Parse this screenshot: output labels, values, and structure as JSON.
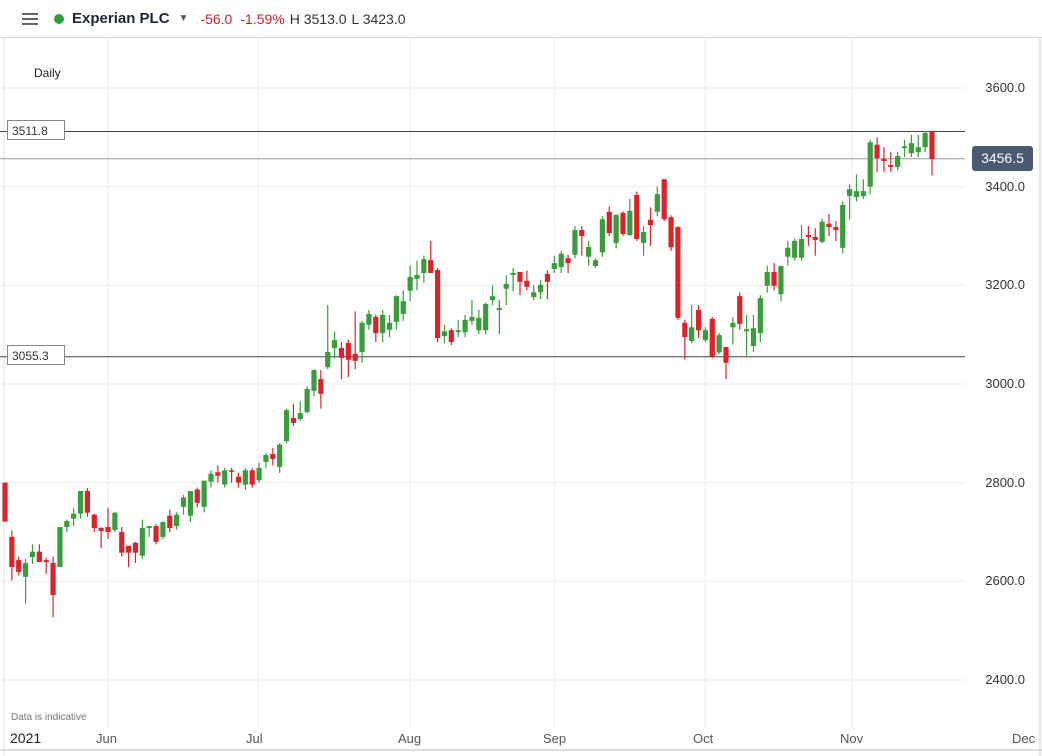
{
  "header": {
    "instrument": "Experian PLC",
    "change": "-56.0",
    "change_pct": "-1.59%",
    "high": "H 3513.0",
    "low": "L 3423.0",
    "status_color": "#2ea043"
  },
  "period": "Daily",
  "levels": {
    "upper": "3511.8",
    "lower": "3055.3",
    "current": "3456.5"
  },
  "footer": {
    "note": "Data is indicative",
    "year": "2021"
  },
  "chart_data": {
    "type": "candlestick",
    "up_color": "#3a9c3c",
    "down_color": "#d9242b",
    "ylim": [
      2350,
      3700
    ],
    "y_ticks": [
      "3600.0",
      "3400.0",
      "3200.0",
      "3000.0",
      "2800.0",
      "2600.0",
      "2400.0"
    ],
    "x_ticks": [
      "Jun",
      "Jul",
      "Aug",
      "Sep",
      "Oct",
      "Nov",
      "Dec"
    ],
    "grid": true,
    "horizontal_lines": [
      3511.8,
      3456.5,
      3055.3
    ],
    "ohlc_fields": [
      "open",
      "high",
      "low",
      "close"
    ],
    "candles": [
      [
        2800,
        2800,
        2721,
        2721
      ],
      [
        2690,
        2703,
        2602,
        2629
      ],
      [
        2643,
        2650,
        2612,
        2619
      ],
      [
        2609,
        2645,
        2555,
        2637
      ],
      [
        2649,
        2675,
        2635,
        2660
      ],
      [
        2660,
        2675,
        2639,
        2639
      ],
      [
        2643,
        2647,
        2615,
        2639
      ],
      [
        2637,
        2650,
        2527,
        2572
      ],
      [
        2629,
        2710,
        2629,
        2710
      ],
      [
        2710,
        2725,
        2700,
        2722
      ],
      [
        2727,
        2748,
        2712,
        2737
      ],
      [
        2737,
        2783,
        2727,
        2783
      ],
      [
        2783,
        2789,
        2731,
        2739
      ],
      [
        2735,
        2737,
        2700,
        2708
      ],
      [
        2708,
        2710,
        2667,
        2702
      ],
      [
        2710,
        2749,
        2686,
        2700
      ],
      [
        2704,
        2741,
        2700,
        2739
      ],
      [
        2700,
        2710,
        2650,
        2658
      ],
      [
        2672,
        2672,
        2629,
        2658
      ],
      [
        2678,
        2680,
        2637,
        2658
      ],
      [
        2652,
        2725,
        2645,
        2708
      ],
      [
        2708,
        2712,
        2690,
        2712
      ],
      [
        2712,
        2716,
        2675,
        2680
      ],
      [
        2690,
        2722,
        2685,
        2720
      ],
      [
        2733,
        2745,
        2700,
        2708
      ],
      [
        2712,
        2740,
        2705,
        2735
      ],
      [
        2751,
        2775,
        2735,
        2770
      ],
      [
        2733,
        2783,
        2720,
        2783
      ],
      [
        2786,
        2790,
        2750,
        2759
      ],
      [
        2751,
        2804,
        2740,
        2804
      ],
      [
        2802,
        2825,
        2790,
        2818
      ],
      [
        2821,
        2835,
        2800,
        2814
      ],
      [
        2796,
        2830,
        2790,
        2825
      ],
      [
        2825,
        2830,
        2800,
        2822
      ],
      [
        2812,
        2820,
        2790,
        2800
      ],
      [
        2796,
        2830,
        2785,
        2825
      ],
      [
        2825,
        2830,
        2790,
        2796
      ],
      [
        2805,
        2840,
        2800,
        2830
      ],
      [
        2842,
        2860,
        2830,
        2856
      ],
      [
        2858,
        2870,
        2835,
        2848
      ],
      [
        2832,
        2880,
        2820,
        2877
      ],
      [
        2884,
        2950,
        2880,
        2947
      ],
      [
        2931,
        2960,
        2915,
        2921
      ],
      [
        2929,
        2965,
        2925,
        2941
      ],
      [
        2943,
        2995,
        2940,
        2990
      ],
      [
        2986,
        3030,
        2975,
        3028
      ],
      [
        3010,
        3028,
        2950,
        2980
      ],
      [
        3034,
        3160,
        3030,
        3065
      ],
      [
        3073,
        3106,
        3052,
        3089
      ],
      [
        3073,
        3085,
        3010,
        3053
      ],
      [
        3083,
        3090,
        3014,
        3049
      ],
      [
        3061,
        3147,
        3030,
        3047
      ],
      [
        3065,
        3128,
        3043,
        3124
      ],
      [
        3120,
        3150,
        3110,
        3142
      ],
      [
        3136,
        3140,
        3085,
        3103
      ],
      [
        3103,
        3150,
        3085,
        3140
      ],
      [
        3110,
        3140,
        3095,
        3124
      ],
      [
        3126,
        3180,
        3110,
        3178
      ],
      [
        3142,
        3190,
        3128,
        3168
      ],
      [
        3189,
        3240,
        3168,
        3217
      ],
      [
        3213,
        3250,
        3190,
        3221
      ],
      [
        3225,
        3260,
        3205,
        3253
      ],
      [
        3251,
        3290,
        3225,
        3225
      ],
      [
        3231,
        3235,
        3085,
        3093
      ],
      [
        3097,
        3120,
        3083,
        3107
      ],
      [
        3109,
        3113,
        3079,
        3085
      ],
      [
        3105,
        3130,
        3095,
        3109
      ],
      [
        3105,
        3140,
        3095,
        3130
      ],
      [
        3128,
        3170,
        3120,
        3136
      ],
      [
        3109,
        3150,
        3101,
        3134
      ],
      [
        3109,
        3165,
        3101,
        3162
      ],
      [
        3170,
        3200,
        3160,
        3178
      ],
      [
        3150,
        3170,
        3101,
        3154
      ],
      [
        3193,
        3220,
        3160,
        3203
      ],
      [
        3221,
        3235,
        3188,
        3225
      ],
      [
        3227,
        3227,
        3180,
        3207
      ],
      [
        3209,
        3230,
        3190,
        3197
      ],
      [
        3176,
        3200,
        3170,
        3186
      ],
      [
        3186,
        3210,
        3172,
        3201
      ],
      [
        3223,
        3230,
        3172,
        3207
      ],
      [
        3233,
        3260,
        3225,
        3245
      ],
      [
        3237,
        3270,
        3225,
        3264
      ],
      [
        3255,
        3262,
        3225,
        3245
      ],
      [
        3262,
        3320,
        3255,
        3312
      ],
      [
        3312,
        3320,
        3260,
        3300
      ],
      [
        3258,
        3290,
        3240,
        3278
      ],
      [
        3239,
        3255,
        3235,
        3251
      ],
      [
        3267,
        3340,
        3258,
        3334
      ],
      [
        3349,
        3360,
        3300,
        3306
      ],
      [
        3286,
        3343,
        3275,
        3343
      ],
      [
        3347,
        3350,
        3300,
        3304
      ],
      [
        3302,
        3375,
        3300,
        3351
      ],
      [
        3383,
        3390,
        3290,
        3294
      ],
      [
        3286,
        3320,
        3260,
        3308
      ],
      [
        3333,
        3358,
        3280,
        3322
      ],
      [
        3349,
        3400,
        3340,
        3385
      ],
      [
        3415,
        3415,
        3330,
        3334
      ],
      [
        3338,
        3342,
        3270,
        3277
      ],
      [
        3318,
        3320,
        3130,
        3134
      ],
      [
        3124,
        3130,
        3050,
        3095
      ],
      [
        3087,
        3160,
        3083,
        3115
      ],
      [
        3150,
        3160,
        3093,
        3109
      ],
      [
        3089,
        3115,
        3085,
        3109
      ],
      [
        3132,
        3136,
        3052,
        3055
      ],
      [
        3064,
        3103,
        3060,
        3099
      ],
      [
        3075,
        3075,
        3010,
        3043
      ],
      [
        3115,
        3135,
        3080,
        3124
      ],
      [
        3178,
        3185,
        3110,
        3122
      ],
      [
        3107,
        3140,
        3055,
        3111
      ],
      [
        3077,
        3140,
        3065,
        3113
      ],
      [
        3103,
        3180,
        3085,
        3174
      ],
      [
        3199,
        3240,
        3185,
        3227
      ],
      [
        3227,
        3245,
        3190,
        3199
      ],
      [
        3182,
        3240,
        3168,
        3239
      ],
      [
        3258,
        3290,
        3240,
        3276
      ],
      [
        3256,
        3295,
        3250,
        3290
      ],
      [
        3256,
        3322,
        3250,
        3294
      ],
      [
        3302,
        3320,
        3280,
        3298
      ],
      [
        3298,
        3316,
        3260,
        3292
      ],
      [
        3288,
        3335,
        3285,
        3329
      ],
      [
        3325,
        3345,
        3300,
        3318
      ],
      [
        3318,
        3330,
        3290,
        3312
      ],
      [
        3276,
        3370,
        3265,
        3363
      ],
      [
        3381,
        3405,
        3333,
        3395
      ],
      [
        3379,
        3425,
        3370,
        3391
      ],
      [
        3381,
        3415,
        3375,
        3391
      ],
      [
        3400,
        3495,
        3385,
        3490
      ],
      [
        3485,
        3500,
        3430,
        3458
      ],
      [
        3456,
        3480,
        3430,
        3452
      ],
      [
        3444,
        3470,
        3430,
        3440
      ],
      [
        3440,
        3470,
        3433,
        3462
      ],
      [
        3478,
        3495,
        3460,
        3482
      ],
      [
        3468,
        3505,
        3460,
        3488
      ],
      [
        3470,
        3505,
        3460,
        3480
      ],
      [
        3480,
        3513,
        3470,
        3509
      ],
      [
        3513,
        3513,
        3423,
        3456
      ]
    ]
  }
}
